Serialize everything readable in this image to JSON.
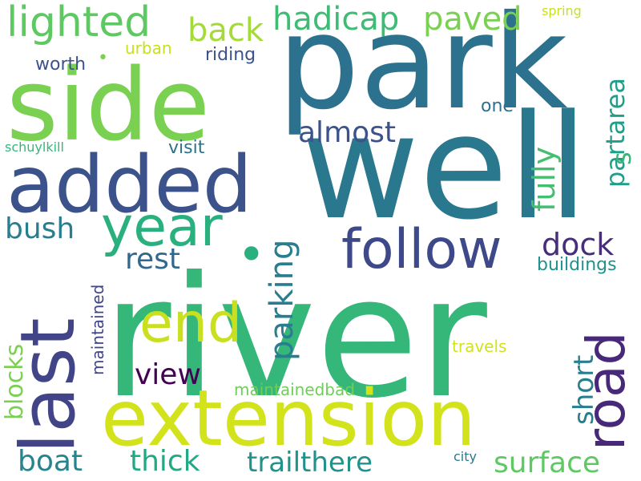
{
  "colors": {
    "background": "#ffffff"
  },
  "words": [
    {
      "id": "river",
      "text": "river",
      "color": "#35b779",
      "vertical": false
    },
    {
      "id": "well",
      "text": "well",
      "color": "#2a788e",
      "vertical": false
    },
    {
      "id": "park",
      "text": "park",
      "color": "#2c728e",
      "vertical": false
    },
    {
      "id": "side",
      "text": "side",
      "color": "#7ad151",
      "vertical": false
    },
    {
      "id": "extension",
      "text": "extension",
      "color": "#d2e21b",
      "vertical": false
    },
    {
      "id": "added",
      "text": "added",
      "color": "#3b528b",
      "vertical": false
    },
    {
      "id": "last",
      "text": "last",
      "color": "#414487",
      "vertical": true
    },
    {
      "id": "road",
      "text": "road",
      "color": "#482878",
      "vertical": true
    },
    {
      "id": "year",
      "text": "year",
      "color": "#2ab07f",
      "vertical": false
    },
    {
      "id": "end",
      "text": "end",
      "color": "#c8e020",
      "vertical": false
    },
    {
      "id": "follow",
      "text": "follow",
      "color": "#3e4989",
      "vertical": false
    },
    {
      "id": "lighted",
      "text": "lighted",
      "color": "#5ec962",
      "vertical": false
    },
    {
      "id": "parking",
      "text": "parking",
      "color": "#287d8e",
      "vertical": true
    },
    {
      "id": "back",
      "text": "back",
      "color": "#a5db36",
      "vertical": false
    },
    {
      "id": "hadicap",
      "text": "hadicap",
      "color": "#3dbc74",
      "vertical": false
    },
    {
      "id": "paved",
      "text": "paved",
      "color": "#7ad151",
      "vertical": false
    },
    {
      "id": "partarea",
      "text": "partarea",
      "color": "#1f9e89",
      "vertical": true
    },
    {
      "id": "fully",
      "text": "fully",
      "color": "#44bf70",
      "vertical": true
    },
    {
      "id": "dock",
      "text": "dock",
      "color": "#472d7b",
      "vertical": false
    },
    {
      "id": "almost",
      "text": "almost",
      "color": "#3b528b",
      "vertical": false
    },
    {
      "id": "rest",
      "text": "rest",
      "color": "#31688e",
      "vertical": false
    },
    {
      "id": "view",
      "text": "view",
      "color": "#440154",
      "vertical": false
    },
    {
      "id": "bush",
      "text": "bush",
      "color": "#287d8e",
      "vertical": false
    },
    {
      "id": "thick",
      "text": "thick",
      "color": "#22a884",
      "vertical": false
    },
    {
      "id": "trailthere",
      "text": "trailthere",
      "color": "#21918c",
      "vertical": false
    },
    {
      "id": "surface",
      "text": "surface",
      "color": "#5ec962",
      "vertical": false
    },
    {
      "id": "boat",
      "text": "boat",
      "color": "#25848e",
      "vertical": false
    },
    {
      "id": "short",
      "text": "short",
      "color": "#277f8e",
      "vertical": true
    },
    {
      "id": "blocks",
      "text": "blocks",
      "color": "#7ad151",
      "vertical": true
    },
    {
      "id": "maintained",
      "text": "maintained",
      "color": "#414487",
      "vertical": true
    },
    {
      "id": "maintainedbad",
      "text": "maintainedbad",
      "color": "#6ece58",
      "vertical": false
    },
    {
      "id": "worth",
      "text": "worth",
      "color": "#3b528b",
      "vertical": false
    },
    {
      "id": "riding",
      "text": "riding",
      "color": "#3b528b",
      "vertical": false
    },
    {
      "id": "urban",
      "text": "urban",
      "color": "#c8e020",
      "vertical": false
    },
    {
      "id": "visit",
      "text": "visit",
      "color": "#2c728e",
      "vertical": false
    },
    {
      "id": "one",
      "text": "one",
      "color": "#2c728e",
      "vertical": false
    },
    {
      "id": "buildings",
      "text": "buildings",
      "color": "#21918c",
      "vertical": false
    },
    {
      "id": "travels",
      "text": "travels",
      "color": "#d2e21b",
      "vertical": false
    },
    {
      "id": "spring",
      "text": "spring",
      "color": "#c8e020",
      "vertical": false
    },
    {
      "id": "schuylkill",
      "text": "schuylkill",
      "color": "#35b779",
      "vertical": false
    },
    {
      "id": "city",
      "text": "city",
      "color": "#2a788e",
      "vertical": false
    },
    {
      "id": "dot1",
      "text": "•",
      "color": "#7ad151",
      "vertical": false
    },
    {
      "id": "s",
      "text": "s",
      "color": "#35b779",
      "vertical": true
    },
    {
      "id": "dot2",
      "text": "•",
      "color": "#2ab07f",
      "vertical": false
    }
  ]
}
